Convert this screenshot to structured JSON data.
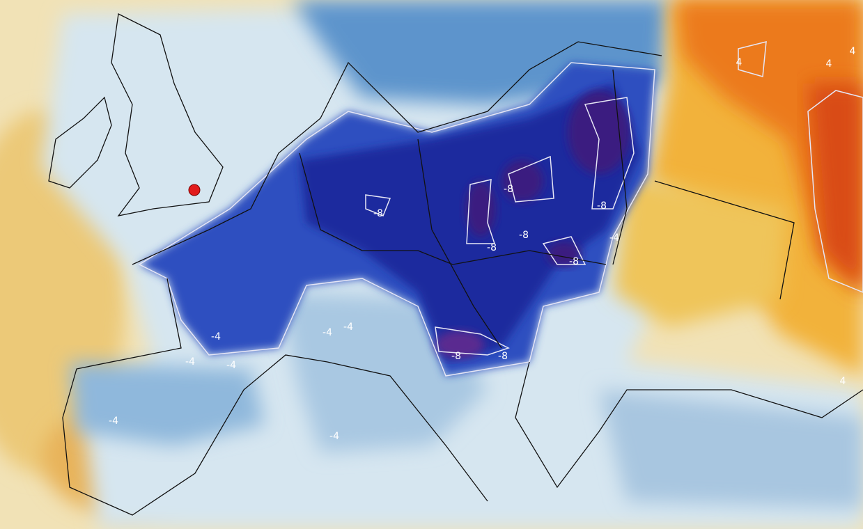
{
  "contour_labels": [
    "-8",
    "-8",
    "-8",
    "-8",
    "-8",
    "-8",
    "-8",
    "-8",
    "-4",
    "-4",
    "-4",
    "-4",
    "-4",
    "-4",
    "-4",
    "-4",
    "4",
    "4",
    "4",
    "4"
  ]
}
